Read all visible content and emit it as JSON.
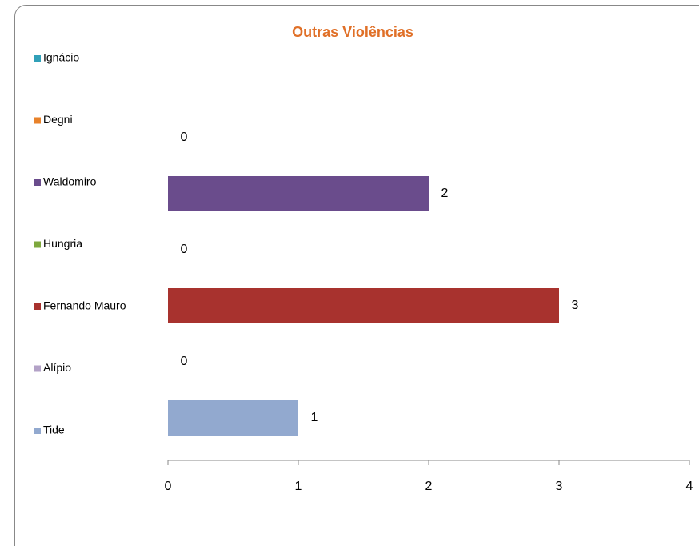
{
  "chart_data": {
    "type": "bar",
    "orientation": "horizontal",
    "title": "Outras Violências",
    "series": [
      {
        "name": "Ignácio",
        "color": "#31a0b8",
        "values": [
          null
        ]
      },
      {
        "name": "Degni",
        "color": "#e8822a",
        "values": [
          0
        ]
      },
      {
        "name": "Waldomiro",
        "color": "#6a4c8c",
        "values": [
          2
        ]
      },
      {
        "name": "Hungria",
        "color": "#7ea83d",
        "values": [
          0
        ]
      },
      {
        "name": "Fernando Mauro",
        "color": "#a8322e",
        "values": [
          3
        ]
      },
      {
        "name": "Alípio",
        "color": "#b3a2c7",
        "values": [
          0
        ]
      },
      {
        "name": "Tide",
        "color": "#92a9cf",
        "values": [
          1
        ]
      }
    ],
    "xlim": [
      0,
      4
    ],
    "xticks": [
      0,
      1,
      2,
      3,
      4
    ],
    "legend": "left",
    "data_labels": true
  }
}
